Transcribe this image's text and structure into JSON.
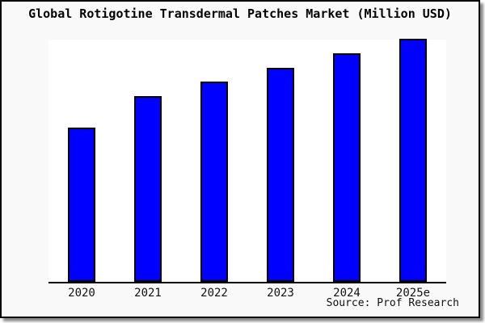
{
  "title": "Global Rotigotine Transdermal Patches Market (Million USD)",
  "source": "Source: Prof Research",
  "colors": {
    "bar_fill": "#0000fe",
    "bar_border": "#000000",
    "figure_background": "#f9f9f9",
    "plot_background": "#ffffff",
    "axis": "#000000",
    "frame_border": "#000000"
  },
  "chart_data": {
    "type": "bar",
    "categories": [
      "2020",
      "2021",
      "2022",
      "2023",
      "2024",
      "2025e"
    ],
    "values": [
      63,
      76,
      82,
      88,
      94,
      100
    ],
    "value_scale": "relative estimate, tallest bar (2025e) = 100; no y-axis or value labels are shown",
    "title": "Global Rotigotine Transdermal Patches Market (Million USD)",
    "xlabel": "",
    "ylabel": "",
    "ylim": [
      0,
      101
    ],
    "grid": false,
    "legend": false,
    "annotations": [
      "Source: Prof Research"
    ]
  }
}
